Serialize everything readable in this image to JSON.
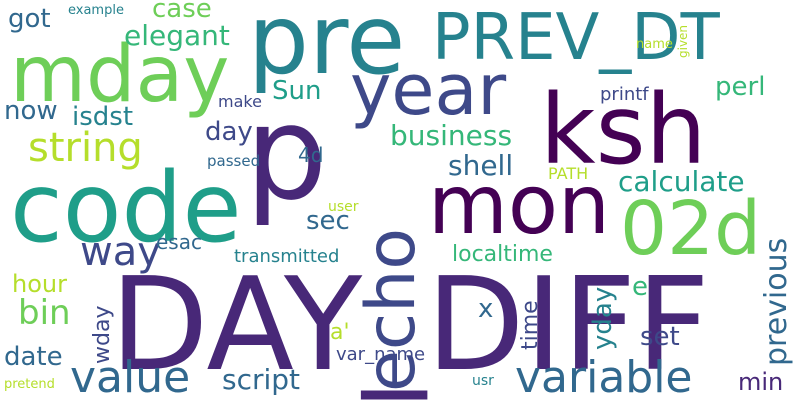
{
  "palette": {
    "c1": "#440154",
    "c2": "#482878",
    "c3": "#3e4989",
    "c4": "#31688e",
    "c5": "#26828e",
    "c6": "#1f9e89",
    "c7": "#35b779",
    "c8": "#6ece58",
    "c9": "#b5de2b",
    "c10": "#fde725"
  },
  "words": [
    {
      "id": "w-p",
      "text": "p",
      "color": "#482878"
    },
    {
      "id": "w-day-diff",
      "text": "DAY_DIFF",
      "color": "#482878"
    },
    {
      "id": "w-prev-dt",
      "text": "PREV_DT",
      "color": "#26828e"
    },
    {
      "id": "w-pre",
      "text": "pre",
      "color": "#26828e"
    },
    {
      "id": "w-code",
      "text": "code",
      "color": "#1f9e89"
    },
    {
      "id": "w-ksh",
      "text": "ksh",
      "color": "#440154"
    },
    {
      "id": "w-mon",
      "text": "mon",
      "color": "#440154"
    },
    {
      "id": "w-mday",
      "text": "mday",
      "color": "#6ece58"
    },
    {
      "id": "w-year",
      "text": "year",
      "color": "#3e4989"
    },
    {
      "id": "w-echo",
      "text": "echo",
      "color": "#3e4989"
    },
    {
      "id": "w-02d",
      "text": "02d",
      "color": "#6ece58"
    },
    {
      "id": "w-variable",
      "text": "variable",
      "color": "#31688e"
    },
    {
      "id": "w-value",
      "text": "value",
      "color": "#31688e"
    },
    {
      "id": "w-way",
      "text": "way",
      "color": "#3e4989"
    },
    {
      "id": "w-string",
      "text": "string",
      "color": "#b5de2b"
    },
    {
      "id": "w-calculate",
      "text": "calculate",
      "color": "#1f9e89"
    },
    {
      "id": "w-business",
      "text": "business",
      "color": "#35b779"
    },
    {
      "id": "w-shell",
      "text": "shell",
      "color": "#31688e"
    },
    {
      "id": "w-script",
      "text": "script",
      "color": "#31688e"
    },
    {
      "id": "w-elegant",
      "text": "elegant",
      "color": "#35b779"
    },
    {
      "id": "w-case",
      "text": "case",
      "color": "#6ece58"
    },
    {
      "id": "w-got",
      "text": "got",
      "color": "#31688e"
    },
    {
      "id": "w-now",
      "text": "now",
      "color": "#31688e"
    },
    {
      "id": "w-isdst",
      "text": "isdst",
      "color": "#26828e"
    },
    {
      "id": "w-sun",
      "text": "Sun",
      "color": "#1f9e89"
    },
    {
      "id": "w-day",
      "text": "day",
      "color": "#3e4989"
    },
    {
      "id": "w-perl",
      "text": "perl",
      "color": "#35b779"
    },
    {
      "id": "w-make",
      "text": "make",
      "color": "#3e4989"
    },
    {
      "id": "w-printf",
      "text": "printf",
      "color": "#3e4989"
    },
    {
      "id": "w-4d",
      "text": "4d",
      "color": "#31688e"
    },
    {
      "id": "w-passed",
      "text": "passed",
      "color": "#31688e"
    },
    {
      "id": "w-path",
      "text": "PATH",
      "color": "#b5de2b"
    },
    {
      "id": "w-sec",
      "text": "sec",
      "color": "#31688e"
    },
    {
      "id": "w-user",
      "text": "user",
      "color": "#b5de2b"
    },
    {
      "id": "w-esac",
      "text": "esac",
      "color": "#31688e"
    },
    {
      "id": "w-hour",
      "text": "hour",
      "color": "#b5de2b"
    },
    {
      "id": "w-bin",
      "text": "bin",
      "color": "#6ece58"
    },
    {
      "id": "w-date",
      "text": "date",
      "color": "#31688e"
    },
    {
      "id": "w-transmitted",
      "text": "transmitted",
      "color": "#26828e"
    },
    {
      "id": "w-localtime",
      "text": "localtime",
      "color": "#35b779"
    },
    {
      "id": "w-a",
      "text": "a'",
      "color": "#b5de2b"
    },
    {
      "id": "w-var-name",
      "text": "var_name",
      "color": "#3e4989"
    },
    {
      "id": "w-x",
      "text": "x",
      "color": "#31688e"
    },
    {
      "id": "w-e",
      "text": "e",
      "color": "#35b779"
    },
    {
      "id": "w-set",
      "text": "set",
      "color": "#3e4989"
    },
    {
      "id": "w-min",
      "text": "min",
      "color": "#482878"
    },
    {
      "id": "w-previous",
      "text": "previous",
      "color": "#31688e"
    },
    {
      "id": "w-yday",
      "text": "yday",
      "color": "#26828e"
    },
    {
      "id": "w-time",
      "text": "time",
      "color": "#3e4989"
    },
    {
      "id": "w-wday",
      "text": "wday",
      "color": "#3e4989"
    },
    {
      "id": "w-example",
      "text": "example",
      "color": "#26828e"
    },
    {
      "id": "w-given",
      "text": "given",
      "color": "#b5de2b"
    },
    {
      "id": "w-name",
      "text": "name",
      "color": "#b5de2b"
    },
    {
      "id": "w-pretend",
      "text": "pretend",
      "color": "#b5de2b"
    },
    {
      "id": "w-usr",
      "text": "usr",
      "color": "#26828e"
    }
  ]
}
